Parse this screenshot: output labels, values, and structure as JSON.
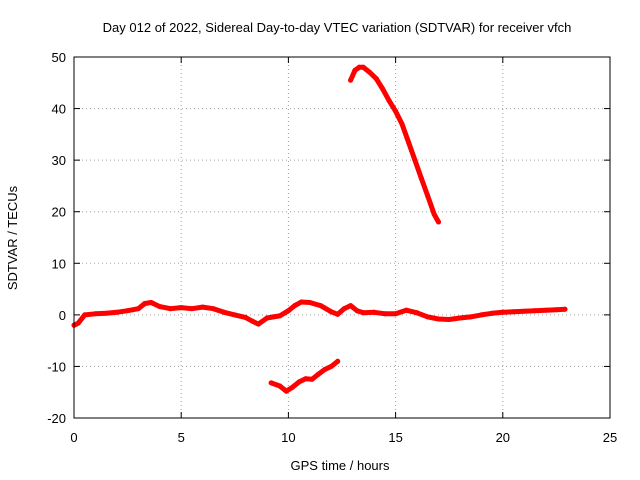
{
  "chart_data": {
    "type": "line",
    "title": "Day 012 of 2022, Sidereal Day-to-day VTEC variation (SDTVAR) for receiver vfch",
    "xlabel": "GPS time / hours",
    "ylabel": "SDTVAR / TECUs",
    "xlim": [
      0,
      25
    ],
    "ylim": [
      -20,
      50
    ],
    "xticks": [
      0,
      5,
      10,
      15,
      20,
      25
    ],
    "yticks": [
      -20,
      -10,
      0,
      10,
      20,
      30,
      40,
      50
    ],
    "grid": true,
    "legend": "none",
    "series_color": "#ff0000",
    "series": [
      {
        "name": "satellite-track-main",
        "points": [
          [
            0,
            -2
          ],
          [
            0.2,
            -1.6
          ],
          [
            0.5,
            0
          ],
          [
            1,
            0.2
          ],
          [
            1.5,
            0.3
          ],
          [
            2,
            0.5
          ],
          [
            2.5,
            0.8
          ],
          [
            3,
            1.2
          ],
          [
            3.3,
            2.2
          ],
          [
            3.6,
            2.4
          ],
          [
            4,
            1.6
          ],
          [
            4.5,
            1.2
          ],
          [
            5,
            1.4
          ],
          [
            5.5,
            1.2
          ],
          [
            6,
            1.5
          ],
          [
            6.5,
            1.2
          ],
          [
            7,
            0.5
          ],
          [
            7.5,
            0
          ],
          [
            8,
            -0.5
          ],
          [
            8.3,
            -1.2
          ],
          [
            8.6,
            -1.8
          ],
          [
            9,
            -0.6
          ],
          [
            9.3,
            -0.4
          ],
          [
            9.6,
            -0.2
          ],
          [
            10,
            0.8
          ],
          [
            10.3,
            1.8
          ],
          [
            10.6,
            2.5
          ],
          [
            11,
            2.4
          ],
          [
            11.5,
            1.8
          ],
          [
            12,
            0.6
          ],
          [
            12.3,
            0.1
          ],
          [
            12.6,
            1.2
          ],
          [
            12.9,
            1.8
          ],
          [
            13.2,
            0.8
          ],
          [
            13.5,
            0.4
          ],
          [
            14,
            0.5
          ],
          [
            14.5,
            0.2
          ],
          [
            15,
            0.2
          ],
          [
            15.5,
            0.9
          ],
          [
            16,
            0.4
          ],
          [
            16.5,
            -0.4
          ],
          [
            17,
            -0.8
          ],
          [
            17.5,
            -0.9
          ],
          [
            18,
            -0.6
          ],
          [
            18.5,
            -0.4
          ],
          [
            19,
            0
          ],
          [
            19.5,
            0.3
          ],
          [
            20,
            0.5
          ],
          [
            20.5,
            0.6
          ],
          [
            21,
            0.7
          ],
          [
            21.5,
            0.8
          ],
          [
            22,
            0.9
          ],
          [
            22.5,
            1
          ],
          [
            22.9,
            1.1
          ]
        ]
      },
      {
        "name": "satellite-track-low",
        "points": [
          [
            9.2,
            -13.2
          ],
          [
            9.6,
            -13.8
          ],
          [
            9.9,
            -14.8
          ],
          [
            10.2,
            -14
          ],
          [
            10.5,
            -13
          ],
          [
            10.8,
            -12.4
          ],
          [
            11.1,
            -12.5
          ],
          [
            11.4,
            -11.5
          ],
          [
            11.7,
            -10.6
          ],
          [
            12,
            -10
          ],
          [
            12.3,
            -9
          ]
        ]
      },
      {
        "name": "satellite-track-high",
        "points": [
          [
            12.9,
            45.5
          ],
          [
            13.1,
            47.4
          ],
          [
            13.3,
            48
          ],
          [
            13.5,
            48
          ],
          [
            13.8,
            47
          ],
          [
            14.1,
            45.8
          ],
          [
            14.4,
            43.8
          ],
          [
            14.7,
            41.5
          ],
          [
            15,
            39.5
          ],
          [
            15.3,
            37
          ],
          [
            15.6,
            33.5
          ],
          [
            15.9,
            30
          ],
          [
            16.2,
            26.5
          ],
          [
            16.5,
            23
          ],
          [
            16.8,
            19.5
          ],
          [
            17,
            18
          ]
        ]
      }
    ]
  }
}
